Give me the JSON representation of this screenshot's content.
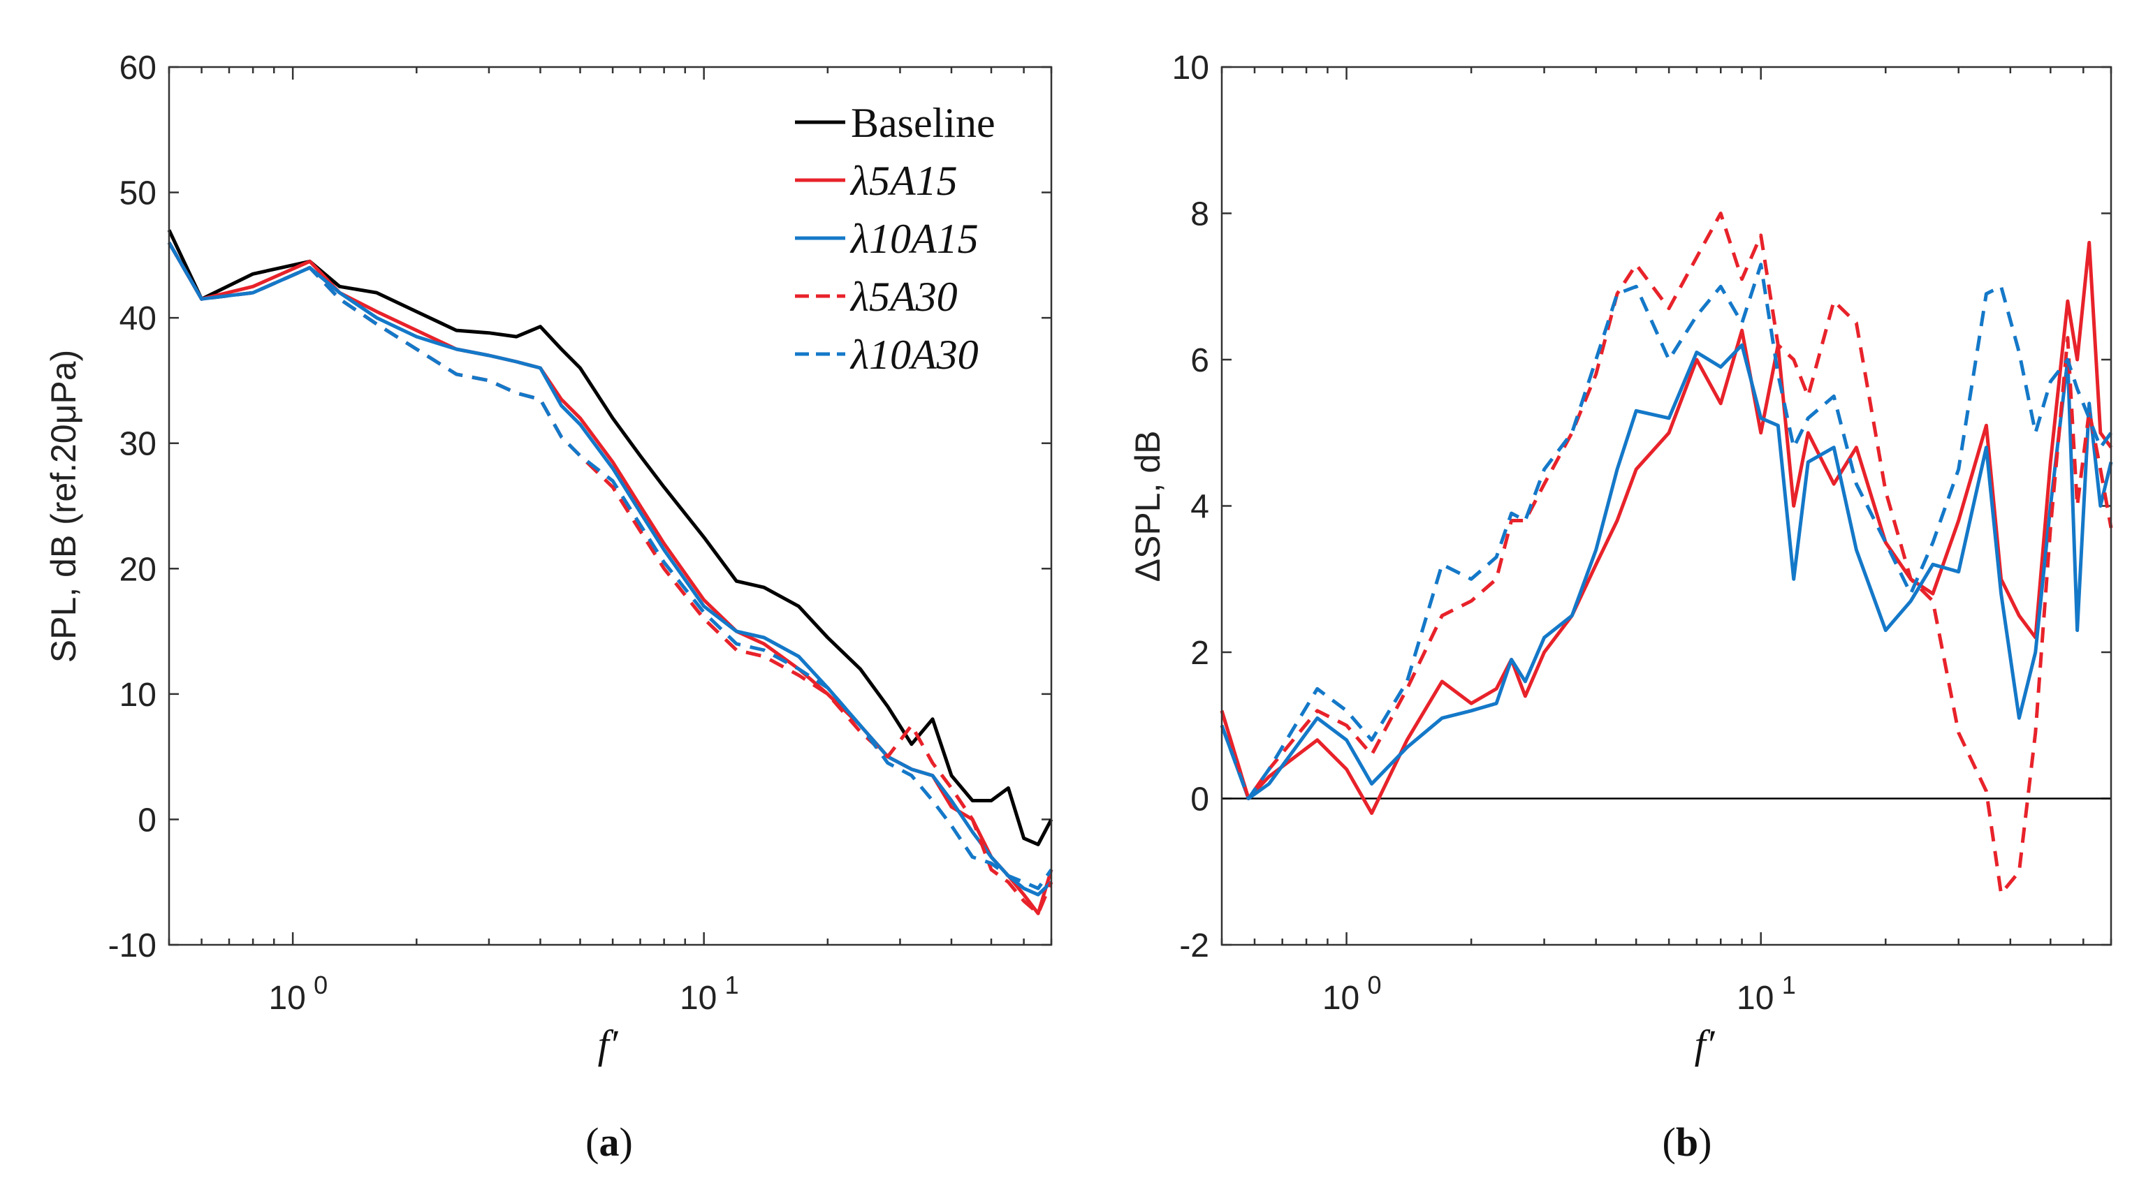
{
  "colors": {
    "baseline": "#000000",
    "red": "#e8222a",
    "blue": "#1478c8",
    "zero_line": "#000000"
  },
  "chart_data": [
    {
      "panel": "a",
      "caption": "a",
      "type": "line",
      "xscale": "log",
      "xlim": [
        0.5,
        70
      ],
      "ylim": [
        -10,
        60
      ],
      "xlabel": "f′",
      "ylabel": "SPL, dB (ref.20μPa)",
      "xticks": [
        {
          "value": 1,
          "label": "10",
          "exp": "0"
        },
        {
          "value": 10,
          "label": "10",
          "exp": "1"
        }
      ],
      "yticks": [
        -10,
        0,
        10,
        20,
        30,
        40,
        50,
        60
      ],
      "legend_position": "top-right",
      "series": [
        {
          "name": "Baseline",
          "color": "#000000",
          "dash": "solid",
          "x": [
            0.5,
            0.6,
            0.8,
            1.1,
            1.3,
            1.6,
            2.0,
            2.5,
            3.0,
            3.5,
            4.0,
            4.5,
            5.0,
            6.0,
            7.0,
            8.0,
            10.0,
            12.0,
            14.0,
            17.0,
            20.0,
            24.0,
            28.0,
            32.0,
            36.0,
            40.0,
            45.0,
            50.0,
            55.0,
            60.0,
            65.0,
            70.0
          ],
          "y": [
            47,
            41.5,
            43.5,
            44.5,
            42.5,
            42,
            40.5,
            39,
            38.8,
            38.5,
            39.3,
            37.5,
            36,
            32,
            29,
            26.5,
            22.5,
            19,
            18.5,
            17,
            14.5,
            12,
            9,
            6,
            8,
            3.5,
            1.5,
            1.5,
            2.5,
            -1.5,
            -2,
            0
          ]
        },
        {
          "name": "λ5A15",
          "color": "#e8222a",
          "dash": "solid",
          "x": [
            0.5,
            0.6,
            0.8,
            1.1,
            1.3,
            1.6,
            2.0,
            2.5,
            3.0,
            3.5,
            4.0,
            4.5,
            5.0,
            6.0,
            7.0,
            8.0,
            10.0,
            12.0,
            14.0,
            17.0,
            20.0,
            24.0,
            28.0,
            32.0,
            36.0,
            40.0,
            45.0,
            50.0,
            55.0,
            60.0,
            65.0,
            70.0
          ],
          "y": [
            46,
            41.5,
            42.5,
            44.5,
            42,
            40.5,
            39,
            37.5,
            37,
            36.5,
            36,
            33.5,
            32,
            28.5,
            25,
            22,
            17.5,
            15,
            14,
            12,
            10,
            7.5,
            5,
            4,
            3.5,
            1,
            0,
            -3,
            -4.5,
            -6,
            -7.5,
            -4
          ]
        },
        {
          "name": "λ10A15",
          "color": "#1478c8",
          "dash": "solid",
          "x": [
            0.5,
            0.6,
            0.8,
            1.1,
            1.3,
            1.6,
            2.0,
            2.5,
            3.0,
            3.5,
            4.0,
            4.5,
            5.0,
            6.0,
            7.0,
            8.0,
            10.0,
            12.0,
            14.0,
            17.0,
            20.0,
            24.0,
            28.0,
            32.0,
            36.0,
            40.0,
            45.0,
            50.0,
            55.0,
            60.0,
            65.0,
            70.0
          ],
          "y": [
            46,
            41.5,
            42,
            44,
            42,
            40,
            38.5,
            37.5,
            37,
            36.5,
            36,
            33,
            31.5,
            28,
            24.5,
            21.5,
            17,
            15,
            14.5,
            13,
            10.5,
            7.5,
            5,
            4,
            3.5,
            1.5,
            -1,
            -3,
            -4.5,
            -5.5,
            -6,
            -5
          ]
        },
        {
          "name": "λ5A30",
          "color": "#e8222a",
          "dash": "dashed",
          "x": [
            0.5,
            0.6,
            0.8,
            1.1,
            1.3,
            1.6,
            2.0,
            2.5,
            3.0,
            3.5,
            4.0,
            4.5,
            5.0,
            6.0,
            7.0,
            8.0,
            10.0,
            12.0,
            14.0,
            17.0,
            20.0,
            24.0,
            28.0,
            32.0,
            36.0,
            40.0,
            45.0,
            50.0,
            55.0,
            60.0,
            65.0,
            70.0
          ],
          "y": [
            46,
            41.5,
            42,
            44,
            41.5,
            39.5,
            37.5,
            35.5,
            35,
            34,
            33.5,
            30.5,
            29,
            26.5,
            23,
            20,
            16,
            13.5,
            13,
            11.5,
            10,
            7,
            5,
            7.5,
            4.5,
            2.5,
            0,
            -4,
            -5,
            -6.5,
            -7.5,
            -5
          ]
        },
        {
          "name": "λ10A30",
          "color": "#1478c8",
          "dash": "dashed",
          "x": [
            0.5,
            0.6,
            0.8,
            1.1,
            1.3,
            1.6,
            2.0,
            2.5,
            3.0,
            3.5,
            4.0,
            4.5,
            5.0,
            6.0,
            7.0,
            8.0,
            10.0,
            12.0,
            14.0,
            17.0,
            20.0,
            24.0,
            28.0,
            32.0,
            36.0,
            40.0,
            45.0,
            50.0,
            55.0,
            60.0,
            65.0,
            70.0
          ],
          "y": [
            46,
            41.5,
            42,
            44,
            41.5,
            39.5,
            37.5,
            35.5,
            35,
            34,
            33.5,
            30.5,
            29,
            27,
            23.5,
            20.5,
            16.5,
            14,
            13.5,
            12,
            10.5,
            7.5,
            4.5,
            3.5,
            1.5,
            -0.5,
            -3,
            -3.5,
            -4.5,
            -5,
            -5.5,
            -4
          ]
        }
      ]
    },
    {
      "panel": "b",
      "caption": "b",
      "type": "line",
      "xscale": "log",
      "xlim": [
        0.5,
        70
      ],
      "ylim": [
        -2,
        10
      ],
      "xlabel": "f′",
      "ylabel": "ΔSPL, dB",
      "xticks": [
        {
          "value": 1,
          "label": "10",
          "exp": "0"
        },
        {
          "value": 10,
          "label": "10",
          "exp": "1"
        }
      ],
      "yticks": [
        -2,
        0,
        2,
        4,
        6,
        8,
        10
      ],
      "reference_line": 0,
      "series": [
        {
          "name": "λ5A15",
          "color": "#e8222a",
          "dash": "solid",
          "x": [
            0.5,
            0.58,
            0.65,
            0.85,
            1.0,
            1.15,
            1.4,
            1.7,
            2.0,
            2.3,
            2.5,
            2.7,
            3.0,
            3.5,
            4.0,
            4.5,
            5.0,
            6.0,
            7.0,
            8.0,
            9.0,
            10.0,
            11.0,
            12.0,
            13.0,
            15.0,
            17.0,
            20.0,
            23.0,
            26.0,
            30.0,
            35.0,
            38.0,
            42.0,
            46.0,
            50.0,
            55.0,
            58.0,
            62.0,
            66.0,
            70.0
          ],
          "y": [
            1.2,
            0.0,
            0.3,
            0.8,
            0.4,
            -0.2,
            0.8,
            1.6,
            1.3,
            1.5,
            1.9,
            1.4,
            2.0,
            2.5,
            3.2,
            3.8,
            4.5,
            5.0,
            6.0,
            5.4,
            6.4,
            5.0,
            6.2,
            4.0,
            5.0,
            4.3,
            4.8,
            3.5,
            3.0,
            2.8,
            3.8,
            5.1,
            3.0,
            2.5,
            2.2,
            4.6,
            6.8,
            6.0,
            7.6,
            5.0,
            4.8
          ]
        },
        {
          "name": "λ10A15",
          "color": "#1478c8",
          "dash": "solid",
          "x": [
            0.5,
            0.58,
            0.65,
            0.85,
            1.0,
            1.15,
            1.4,
            1.7,
            2.0,
            2.3,
            2.5,
            2.7,
            3.0,
            3.5,
            4.0,
            4.5,
            5.0,
            6.0,
            7.0,
            8.0,
            9.0,
            10.0,
            11.0,
            12.0,
            13.0,
            15.0,
            17.0,
            20.0,
            23.0,
            26.0,
            30.0,
            35.0,
            38.0,
            42.0,
            46.0,
            50.0,
            55.0,
            58.0,
            62.0,
            66.0,
            70.0
          ],
          "y": [
            1.0,
            0.0,
            0.2,
            1.1,
            0.8,
            0.2,
            0.7,
            1.1,
            1.2,
            1.3,
            1.9,
            1.6,
            2.2,
            2.5,
            3.4,
            4.5,
            5.3,
            5.2,
            6.1,
            5.9,
            6.2,
            5.2,
            5.1,
            3.0,
            4.6,
            4.8,
            3.4,
            2.3,
            2.7,
            3.2,
            3.1,
            4.8,
            2.8,
            1.1,
            2.0,
            4.0,
            6.0,
            2.3,
            5.4,
            4.0,
            4.6
          ]
        },
        {
          "name": "λ5A30",
          "color": "#e8222a",
          "dash": "dashed",
          "x": [
            0.5,
            0.58,
            0.65,
            0.85,
            1.0,
            1.15,
            1.4,
            1.7,
            2.0,
            2.3,
            2.5,
            2.7,
            3.0,
            3.5,
            4.0,
            4.5,
            5.0,
            6.0,
            7.0,
            8.0,
            9.0,
            10.0,
            11.0,
            12.0,
            13.0,
            15.0,
            17.0,
            20.0,
            23.0,
            26.0,
            30.0,
            35.0,
            38.0,
            42.0,
            46.0,
            50.0,
            55.0,
            58.0,
            62.0,
            66.0,
            70.0
          ],
          "y": [
            1.2,
            0.0,
            0.4,
            1.2,
            1.0,
            0.6,
            1.5,
            2.5,
            2.7,
            3.0,
            3.8,
            3.8,
            4.3,
            5.0,
            5.8,
            6.9,
            7.3,
            6.7,
            7.4,
            8.0,
            7.1,
            7.7,
            6.2,
            6.0,
            5.5,
            6.8,
            6.5,
            4.2,
            3.0,
            2.7,
            0.9,
            0.1,
            -1.3,
            -1.0,
            0.9,
            3.7,
            6.3,
            4.0,
            5.3,
            4.5,
            3.7
          ]
        },
        {
          "name": "λ10A30",
          "color": "#1478c8",
          "dash": "dashed",
          "x": [
            0.5,
            0.58,
            0.65,
            0.85,
            1.0,
            1.15,
            1.4,
            1.7,
            2.0,
            2.3,
            2.5,
            2.7,
            3.0,
            3.5,
            4.0,
            4.5,
            5.0,
            6.0,
            7.0,
            8.0,
            9.0,
            10.0,
            11.0,
            12.0,
            13.0,
            15.0,
            17.0,
            20.0,
            23.0,
            26.0,
            30.0,
            35.0,
            38.0,
            42.0,
            46.0,
            50.0,
            55.0,
            58.0,
            62.0,
            66.0,
            70.0
          ],
          "y": [
            1.0,
            0.0,
            0.4,
            1.5,
            1.2,
            0.8,
            1.6,
            3.2,
            3.0,
            3.3,
            3.9,
            3.8,
            4.5,
            5.0,
            6.0,
            6.9,
            7.0,
            6.0,
            6.6,
            7.0,
            6.5,
            7.3,
            5.8,
            4.8,
            5.2,
            5.5,
            4.3,
            3.5,
            2.8,
            3.5,
            4.5,
            6.9,
            7.0,
            6.1,
            5.0,
            5.7,
            6.0,
            5.6,
            5.2,
            4.8,
            5.0
          ]
        }
      ]
    }
  ]
}
